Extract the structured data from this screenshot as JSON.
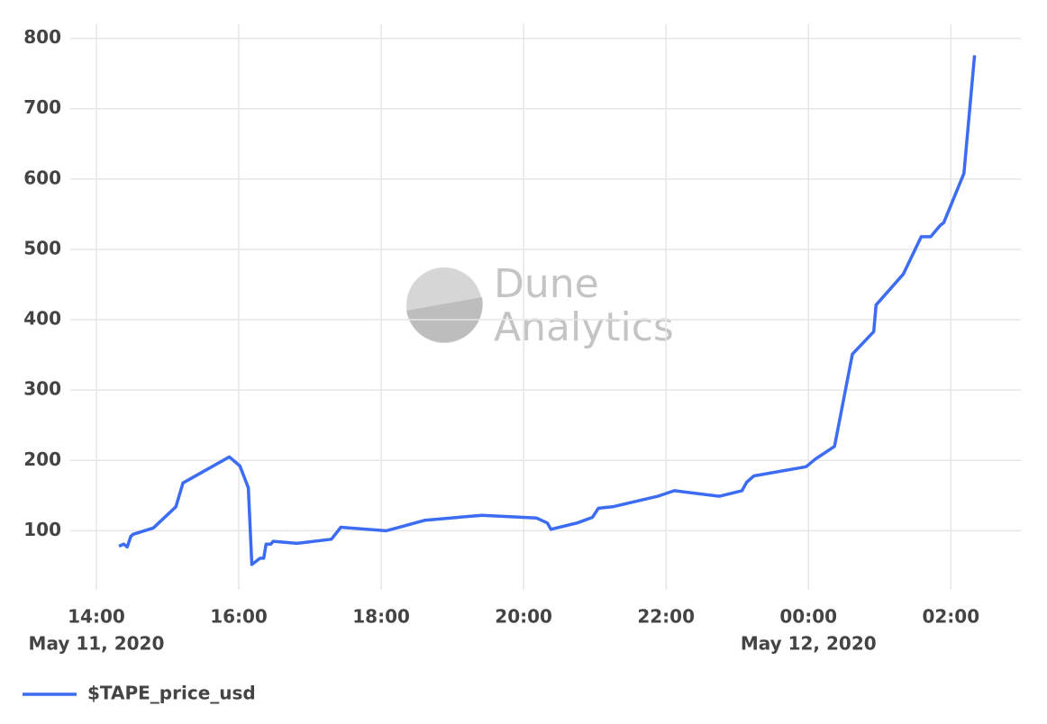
{
  "chart_data": {
    "type": "line",
    "watermark": [
      "Dune",
      "Analytics"
    ],
    "x": [
      "2020-05-11 14:19",
      "2020-05-11 14:23",
      "2020-05-11 14:26",
      "2020-05-11 14:29",
      "2020-05-11 14:31",
      "2020-05-11 14:48",
      "2020-05-11 15:07",
      "2020-05-11 15:13",
      "2020-05-11 15:52",
      "2020-05-11 16:01",
      "2020-05-11 16:08",
      "2020-05-11 16:11",
      "2020-05-11 16:18",
      "2020-05-11 16:21",
      "2020-05-11 16:23",
      "2020-05-11 16:27",
      "2020-05-11 16:29",
      "2020-05-11 16:49",
      "2020-05-11 17:18",
      "2020-05-11 17:26",
      "2020-05-11 18:04",
      "2020-05-11 18:13",
      "2020-05-11 18:37",
      "2020-05-11 19:25",
      "2020-05-11 20:11",
      "2020-05-11 20:20",
      "2020-05-11 20:23",
      "2020-05-11 20:45",
      "2020-05-11 20:58",
      "2020-05-11 21:03",
      "2020-05-11 21:15",
      "2020-05-11 21:53",
      "2020-05-11 22:07",
      "2020-05-11 22:45",
      "2020-05-11 23:04",
      "2020-05-11 23:08",
      "2020-05-11 23:14",
      "2020-05-11 23:58",
      "2020-05-12 00:06",
      "2020-05-12 00:22",
      "2020-05-12 00:37",
      "2020-05-12 00:55",
      "2020-05-12 00:57",
      "2020-05-12 01:20",
      "2020-05-12 01:35",
      "2020-05-12 01:43",
      "2020-05-12 01:51",
      "2020-05-12 01:54",
      "2020-05-12 02:11",
      "2020-05-12 02:20"
    ],
    "series": [
      {
        "name": "$TAPE_price_usd",
        "color": "#3b6cf2",
        "values": [
          78,
          81,
          77,
          92,
          95,
          104,
          134,
          168,
          205,
          192,
          161,
          52,
          61,
          61,
          81,
          81,
          85,
          82,
          88,
          105,
          100,
          104,
          115,
          122,
          118,
          111,
          102,
          111,
          119,
          132,
          134,
          149,
          157,
          149,
          157,
          169,
          178,
          191,
          202,
          220,
          351,
          383,
          421,
          465,
          518,
          518,
          534,
          538,
          608,
          776
        ]
      }
    ],
    "xlim": [
      "2020-05-11 13:38",
      "2020-05-12 02:59"
    ],
    "xticks": [
      {
        "value": "2020-05-11 14:00",
        "label": "14:00",
        "sublabel": "May 11, 2020"
      },
      {
        "value": "2020-05-11 16:00",
        "label": "16:00"
      },
      {
        "value": "2020-05-11 18:00",
        "label": "18:00"
      },
      {
        "value": "2020-05-11 20:00",
        "label": "20:00"
      },
      {
        "value": "2020-05-11 22:00",
        "label": "22:00"
      },
      {
        "value": "2020-05-12 00:00",
        "label": "00:00",
        "sublabel": "May 12, 2020"
      },
      {
        "value": "2020-05-12 02:00",
        "label": "02:00"
      }
    ],
    "ylim": [
      16,
      820
    ],
    "yticks": [
      100,
      200,
      300,
      400,
      500,
      600,
      700,
      800
    ],
    "grid": true,
    "legend": "bottom-left"
  }
}
